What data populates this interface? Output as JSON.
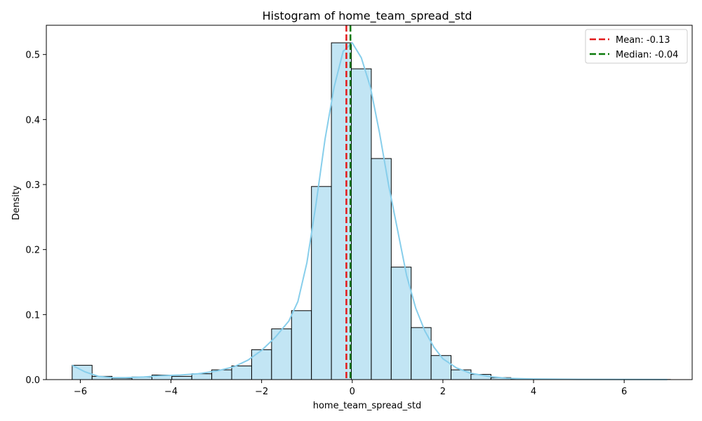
{
  "chart_data": {
    "type": "histogram",
    "title": "Histogram of home_team_spread_std",
    "xlabel": "home_team_spread_std",
    "ylabel": "Density",
    "xlim": [
      -6.75,
      7.5
    ],
    "ylim": [
      0,
      0.545
    ],
    "x_ticks": [
      -6,
      -4,
      -2,
      0,
      2,
      4,
      6
    ],
    "y_ticks": [
      0.0,
      0.1,
      0.2,
      0.3,
      0.4,
      0.5
    ],
    "bin_width": 0.44,
    "bin_start": -6.18,
    "bin_values": [
      0.022,
      0.005,
      0.002,
      0.004,
      0.007,
      0.005,
      0.009,
      0.015,
      0.021,
      0.046,
      0.078,
      0.106,
      0.297,
      0.518,
      0.478,
      0.34,
      0.173,
      0.08,
      0.037,
      0.015,
      0.008,
      0.003,
      0.001,
      0.001,
      0.0005,
      0.0005,
      0.0003,
      0.0003,
      0.0002,
      0.0002
    ],
    "kde_points": [
      [
        -6.18,
        0.022
      ],
      [
        -5.9,
        0.012
      ],
      [
        -5.6,
        0.005
      ],
      [
        -5.3,
        0.003
      ],
      [
        -5.0,
        0.003
      ],
      [
        -4.6,
        0.004
      ],
      [
        -4.2,
        0.006
      ],
      [
        -3.8,
        0.007
      ],
      [
        -3.4,
        0.009
      ],
      [
        -3.0,
        0.013
      ],
      [
        -2.6,
        0.02
      ],
      [
        -2.3,
        0.03
      ],
      [
        -2.0,
        0.045
      ],
      [
        -1.7,
        0.065
      ],
      [
        -1.4,
        0.09
      ],
      [
        -1.2,
        0.12
      ],
      [
        -1.0,
        0.18
      ],
      [
        -0.8,
        0.27
      ],
      [
        -0.6,
        0.37
      ],
      [
        -0.4,
        0.45
      ],
      [
        -0.2,
        0.505
      ],
      [
        0.0,
        0.518
      ],
      [
        0.2,
        0.495
      ],
      [
        0.4,
        0.45
      ],
      [
        0.6,
        0.38
      ],
      [
        0.8,
        0.3
      ],
      [
        1.0,
        0.23
      ],
      [
        1.2,
        0.16
      ],
      [
        1.4,
        0.11
      ],
      [
        1.6,
        0.075
      ],
      [
        1.8,
        0.05
      ],
      [
        2.0,
        0.032
      ],
      [
        2.3,
        0.018
      ],
      [
        2.6,
        0.01
      ],
      [
        3.0,
        0.005
      ],
      [
        3.4,
        0.002
      ],
      [
        4.0,
        0.001
      ],
      [
        5.0,
        0.0004
      ],
      [
        6.0,
        0.0002
      ],
      [
        6.95,
        0.0001
      ]
    ],
    "mean": -0.13,
    "median": -0.04,
    "legend": {
      "position": "top-right",
      "entries": [
        {
          "label": "Mean: -0.13",
          "color": "#e31a1c",
          "style": "dashed"
        },
        {
          "label": "Median: -0.04",
          "color": "#0b7a0b",
          "style": "dashed"
        }
      ]
    },
    "colors": {
      "bar_fill": "#c2e5f4",
      "bar_edge": "#000000",
      "kde_line": "#87ceeb"
    },
    "grid": false
  }
}
